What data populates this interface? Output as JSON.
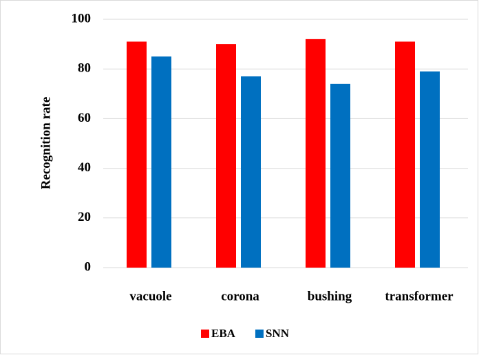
{
  "chart_data": {
    "type": "bar",
    "y_label": "Recognition rate",
    "categories": [
      "vacuole",
      "corona",
      "bushing",
      "transformer"
    ],
    "series": [
      {
        "name": "EBA",
        "color": "#ff0000",
        "values": [
          91,
          90,
          92,
          91
        ]
      },
      {
        "name": "SNN",
        "color": "#0070c0",
        "values": [
          85,
          77,
          74,
          79
        ]
      }
    ],
    "ylim": [
      0,
      100
    ],
    "yticks": [
      0,
      20,
      40,
      60,
      80,
      100
    ],
    "grid": true,
    "legend": "bottom"
  }
}
